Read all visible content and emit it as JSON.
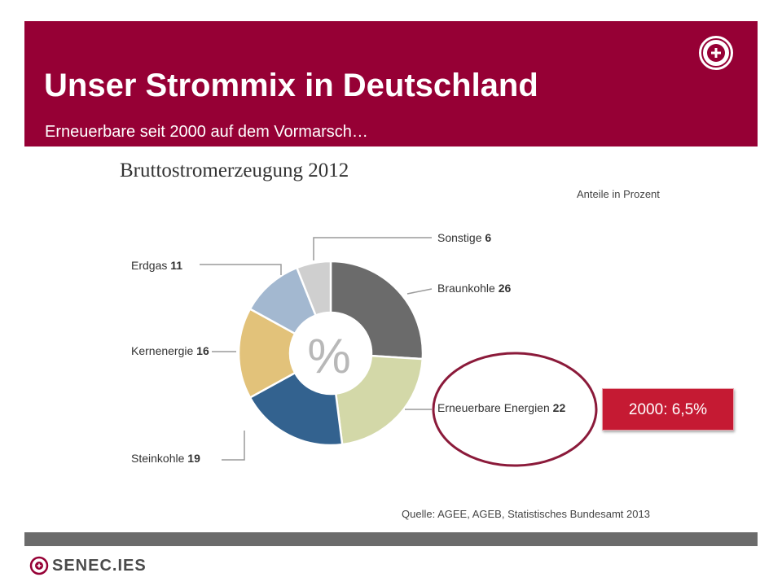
{
  "slide": {
    "title": "Unser Strommix in Deutschland",
    "subtitle": "Erneuerbare seit 2000 auf dem Vormarsch…",
    "callout": "2000: 6,5%",
    "footer_brand": "SENEC.IES"
  },
  "colors": {
    "header_bg": "#960035",
    "footer_bar": "#6b6b6b",
    "callout_bg": "#c51a33",
    "highlight_ellipse": "#8b1a3a"
  },
  "chart_data": {
    "type": "pie",
    "variant": "donut",
    "title": "Bruttostromerzeugung 2012",
    "unit_label": "Anteile in Prozent",
    "center_symbol": "%",
    "source": "Quelle: AGEE, AGEB, Statistisches Bundesamt 2013",
    "slices": [
      {
        "label": "Braunkohle",
        "value": 26,
        "color": "#6b6b6b"
      },
      {
        "label": "Erneuerbare Energien",
        "value": 22,
        "color": "#d3d8a8"
      },
      {
        "label": "Steinkohle",
        "value": 19,
        "color": "#33628f"
      },
      {
        "label": "Kernenergie",
        "value": 16,
        "color": "#e2c27a"
      },
      {
        "label": "Erdgas",
        "value": 11,
        "color": "#a3b8d0"
      },
      {
        "label": "Sonstige",
        "value": 6,
        "color": "#cfcfcf"
      }
    ],
    "highlighted_slice": "Erneuerbare Energien"
  }
}
